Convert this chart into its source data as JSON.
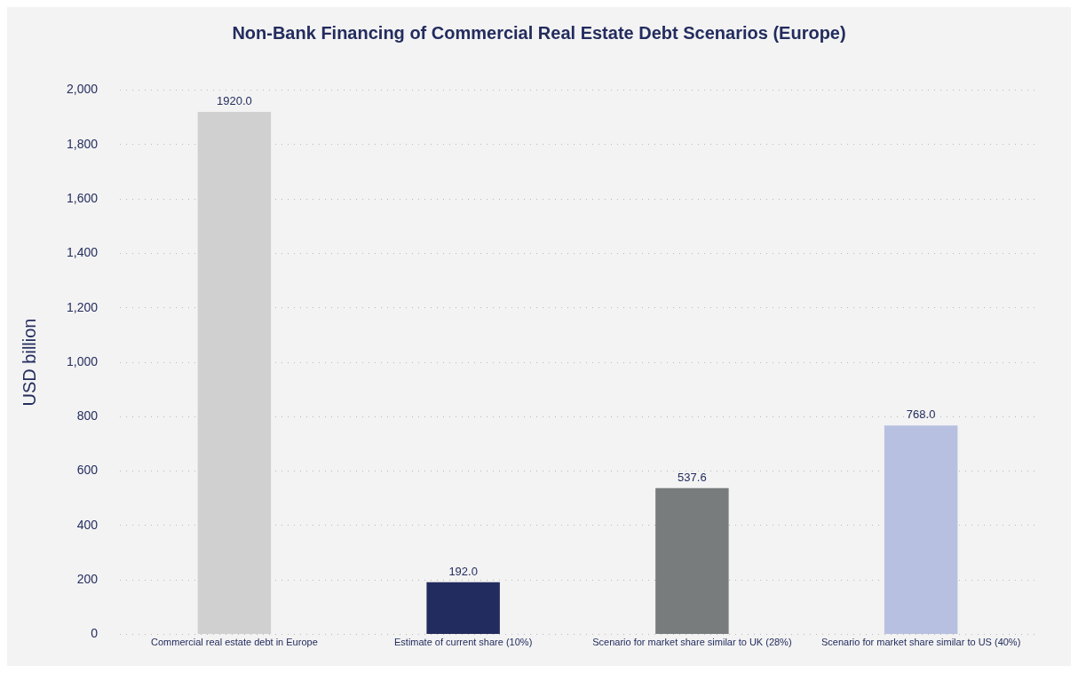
{
  "chart_data": {
    "type": "bar",
    "title": "Non-Bank Financing of Commercial Real Estate Debt Scenarios (Europe)",
    "ylabel": "USD billion",
    "categories": [
      "Commercial real estate debt in Europe",
      "Estimate of current share (10%)",
      "Scenario for market share similar to UK (28%)",
      "Scenario for market share similar to US (40%)"
    ],
    "values": [
      1920,
      192,
      537.6,
      768
    ],
    "colors": [
      "#d0d0d0",
      "#232c5e",
      "#797c7d",
      "#b7c0e0"
    ],
    "value_labels": [
      "1920.0",
      "192.0",
      "537.6",
      "768.0"
    ],
    "ylim": [
      0,
      2000
    ],
    "yticks": [
      0,
      200,
      400,
      600,
      800,
      {
        "value": 1000,
        "label": "1,000"
      },
      {
        "value": 1200,
        "label": "1,200"
      },
      {
        "value": 1400,
        "label": "1,400"
      },
      {
        "value": 1600,
        "label": "1,600"
      },
      {
        "value": 1800,
        "label": "1,800"
      },
      {
        "value": 2000,
        "label": "2,000"
      }
    ],
    "grid": "y",
    "legend": false
  }
}
